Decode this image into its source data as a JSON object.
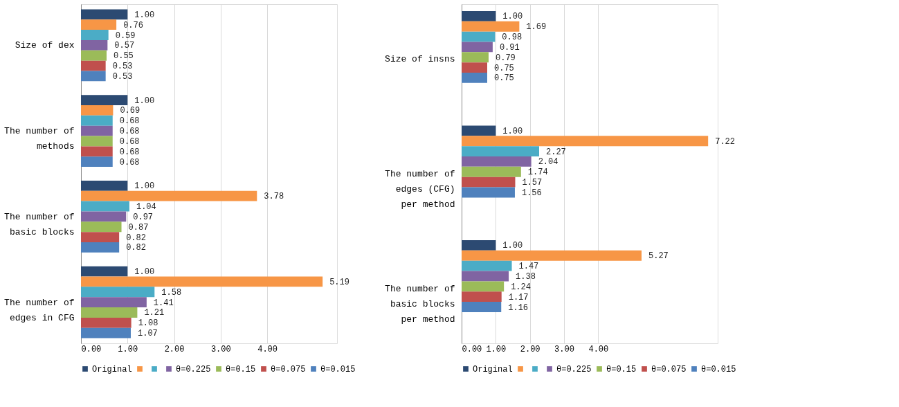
{
  "chart_data": [
    {
      "type": "bar",
      "orientation": "horizontal",
      "categories": [
        "Size of dex",
        "The number of\nmethods",
        "The number of\nbasic blocks",
        "The number of\nedges in CFG"
      ],
      "series": [
        {
          "name": "Original",
          "color": "#2c4a72",
          "values": [
            1.0,
            1.0,
            1.0,
            1.0
          ],
          "value_labels": [
            "1.00",
            "1.00",
            "1.00",
            "1.00"
          ]
        },
        {
          "name": null,
          "color": "#f79646",
          "values": [
            0.76,
            0.69,
            3.78,
            5.19
          ],
          "value_labels": [
            "0.76",
            "0.69",
            "3.78",
            "5.19"
          ]
        },
        {
          "name": null,
          "color": "#4bacc6",
          "values": [
            0.59,
            0.68,
            1.04,
            1.58
          ],
          "value_labels": [
            "0.59",
            "0.68",
            "1.04",
            "1.58"
          ]
        },
        {
          "name": "θ=0.225",
          "color": "#8064a2",
          "values": [
            0.57,
            0.68,
            0.97,
            1.41
          ],
          "value_labels": [
            "0.57",
            "0.68",
            "0.97",
            "1.41"
          ]
        },
        {
          "name": "θ=0.15",
          "color": "#9bbb59",
          "values": [
            0.55,
            0.68,
            0.87,
            1.21
          ],
          "value_labels": [
            "0.55",
            "0.68",
            "0.87",
            "1.21"
          ]
        },
        {
          "name": "θ=0.075",
          "color": "#c0504d",
          "values": [
            0.53,
            0.68,
            0.82,
            1.08
          ],
          "value_labels": [
            "0.53",
            "0.68",
            "0.82",
            "1.08"
          ]
        },
        {
          "name": "θ=0.015",
          "color": "#4f81bd",
          "values": [
            0.53,
            0.68,
            0.82,
            1.07
          ],
          "value_labels": [
            "0.53",
            "0.68",
            "0.82",
            "1.07"
          ]
        }
      ],
      "xlim": [
        0,
        5.5
      ],
      "xticks": [
        {
          "value": 0,
          "label": "0.00"
        },
        {
          "value": 1,
          "label": "1.00"
        },
        {
          "value": 2,
          "label": "2.00"
        },
        {
          "value": 3,
          "label": "3.00"
        },
        {
          "value": 4,
          "label": "4.00"
        }
      ],
      "grid": "x",
      "legend": "bottom"
    },
    {
      "type": "bar",
      "orientation": "horizontal",
      "categories": [
        "Size of insns",
        "The number of\nedges (CFG)\nper method",
        "The number of\nbasic blocks\nper method"
      ],
      "series": [
        {
          "name": "Original",
          "color": "#2c4a72",
          "values": [
            1.0,
            1.0,
            1.0
          ],
          "value_labels": [
            "1.00",
            "1.00",
            "1.00"
          ]
        },
        {
          "name": null,
          "color": "#f79646",
          "values": [
            1.69,
            7.22,
            5.27
          ],
          "value_labels": [
            "1.69",
            "7.22",
            "5.27"
          ]
        },
        {
          "name": null,
          "color": "#4bacc6",
          "values": [
            0.98,
            2.27,
            1.47
          ],
          "value_labels": [
            "0.98",
            "2.27",
            "1.47"
          ]
        },
        {
          "name": "θ=0.225",
          "color": "#8064a2",
          "values": [
            0.91,
            2.04,
            1.38
          ],
          "value_labels": [
            "0.91",
            "2.04",
            "1.38"
          ]
        },
        {
          "name": "θ=0.15",
          "color": "#9bbb59",
          "values": [
            0.79,
            1.74,
            1.24
          ],
          "value_labels": [
            "0.79",
            "1.74",
            "1.24"
          ]
        },
        {
          "name": "θ=0.075",
          "color": "#c0504d",
          "values": [
            0.75,
            1.57,
            1.17
          ],
          "value_labels": [
            "0.75",
            "1.57",
            "1.17"
          ]
        },
        {
          "name": "θ=0.015",
          "color": "#4f81bd",
          "values": [
            0.75,
            1.56,
            1.16
          ],
          "value_labels": [
            "0.75",
            "1.56",
            "1.16"
          ]
        }
      ],
      "xlim": [
        0,
        7.5
      ],
      "xticks": [
        {
          "value": 0,
          "label": "0.00"
        },
        {
          "value": 1,
          "label": "1.00"
        },
        {
          "value": 2,
          "label": "2.00"
        },
        {
          "value": 3,
          "label": "3.00"
        },
        {
          "value": 4,
          "label": "4.00"
        }
      ],
      "grid": "x",
      "legend": "bottom"
    }
  ]
}
